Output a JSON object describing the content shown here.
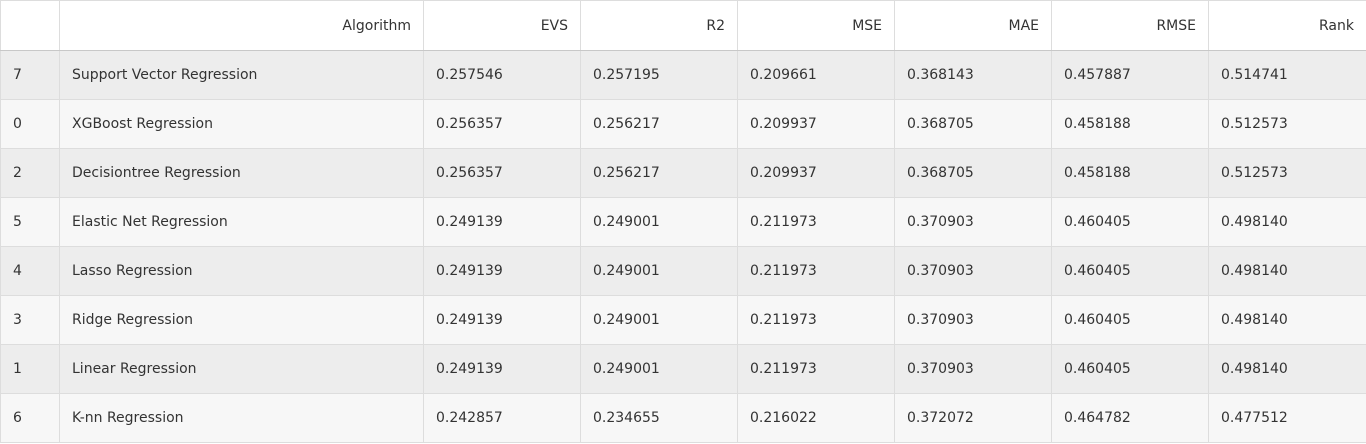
{
  "table": {
    "columns": [
      "",
      "Algorithm",
      "EVS",
      "R2",
      "MSE",
      "MAE",
      "RMSE",
      "Rank"
    ],
    "rows": [
      {
        "index": "7",
        "algorithm": "Support Vector Regression",
        "evs": "0.257546",
        "r2": "0.257195",
        "mse": "0.209661",
        "mae": "0.368143",
        "rmse": "0.457887",
        "rank": "0.514741"
      },
      {
        "index": "0",
        "algorithm": "XGBoost Regression",
        "evs": "0.256357",
        "r2": "0.256217",
        "mse": "0.209937",
        "mae": "0.368705",
        "rmse": "0.458188",
        "rank": "0.512573"
      },
      {
        "index": "2",
        "algorithm": "Decisiontree Regression",
        "evs": "0.256357",
        "r2": "0.256217",
        "mse": "0.209937",
        "mae": "0.368705",
        "rmse": "0.458188",
        "rank": "0.512573"
      },
      {
        "index": "5",
        "algorithm": "Elastic Net Regression",
        "evs": "0.249139",
        "r2": "0.249001",
        "mse": "0.211973",
        "mae": "0.370903",
        "rmse": "0.460405",
        "rank": "0.498140"
      },
      {
        "index": "4",
        "algorithm": "Lasso Regression",
        "evs": "0.249139",
        "r2": "0.249001",
        "mse": "0.211973",
        "mae": "0.370903",
        "rmse": "0.460405",
        "rank": "0.498140"
      },
      {
        "index": "3",
        "algorithm": "Ridge Regression",
        "evs": "0.249139",
        "r2": "0.249001",
        "mse": "0.211973",
        "mae": "0.370903",
        "rmse": "0.460405",
        "rank": "0.498140"
      },
      {
        "index": "1",
        "algorithm": "Linear Regression",
        "evs": "0.249139",
        "r2": "0.249001",
        "mse": "0.211973",
        "mae": "0.370903",
        "rmse": "0.460405",
        "rank": "0.498140"
      },
      {
        "index": "6",
        "algorithm": "K-nn Regression",
        "evs": "0.242857",
        "r2": "0.234655",
        "mse": "0.216022",
        "mae": "0.372072",
        "rmse": "0.464782",
        "rank": "0.477512"
      }
    ]
  },
  "colors": {
    "row_odd": "#ededed",
    "row_even": "#f7f7f7",
    "border": "#dddddd",
    "text": "#333333"
  }
}
